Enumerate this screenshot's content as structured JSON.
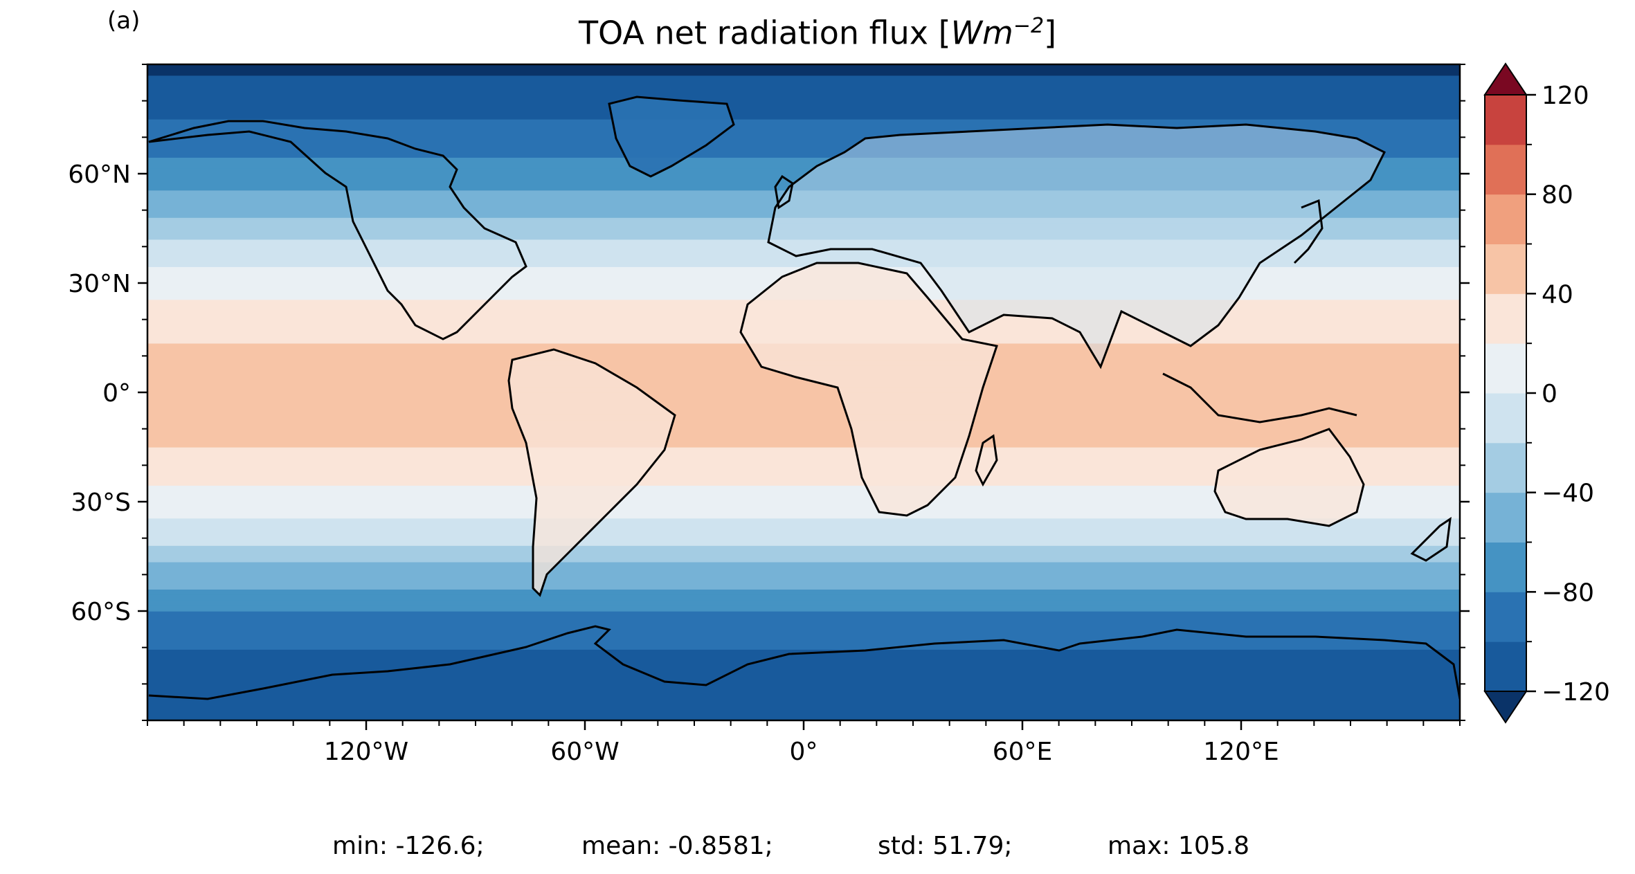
{
  "panel_label": "(a)",
  "title": {
    "text": "TOA net radiation flux [",
    "unit": "Wm",
    "exponent": "−2",
    "close": "]"
  },
  "map": {
    "projection": "PlateCarree",
    "lon_range": [
      -180,
      180
    ],
    "lat_range": [
      -90,
      90
    ],
    "x_ticks": [
      {
        "lon": -120,
        "label": "120°W"
      },
      {
        "lon": -60,
        "label": "60°W"
      },
      {
        "lon": 0,
        "label": "0°"
      },
      {
        "lon": 60,
        "label": "60°E"
      },
      {
        "lon": 120,
        "label": "120°E"
      }
    ],
    "y_ticks": [
      {
        "lat": 60,
        "label": "60°N"
      },
      {
        "lat": 30,
        "label": "30°N"
      },
      {
        "lat": 0,
        "label": "0°"
      },
      {
        "lat": -30,
        "label": "30°S"
      },
      {
        "lat": -60,
        "label": "60°S"
      }
    ],
    "colormap": "RdBu_r",
    "zonal_profile": [
      {
        "lat": -90,
        "value": -110
      },
      {
        "lat": -80,
        "value": -105
      },
      {
        "lat": -70,
        "value": -100
      },
      {
        "lat": -60,
        "value": -80
      },
      {
        "lat": -50,
        "value": -50
      },
      {
        "lat": -40,
        "value": -15
      },
      {
        "lat": -30,
        "value": 10
      },
      {
        "lat": -20,
        "value": 35
      },
      {
        "lat": -10,
        "value": 45
      },
      {
        "lat": 0,
        "value": 55
      },
      {
        "lat": 10,
        "value": 45
      },
      {
        "lat": 20,
        "value": 30
      },
      {
        "lat": 30,
        "value": 10
      },
      {
        "lat": 40,
        "value": -15
      },
      {
        "lat": 50,
        "value": -45
      },
      {
        "lat": 60,
        "value": -70
      },
      {
        "lat": 70,
        "value": -90
      },
      {
        "lat": 80,
        "value": -110
      },
      {
        "lat": 90,
        "value": -125
      }
    ]
  },
  "colorbar": {
    "min": -120,
    "max": 120,
    "step": 20,
    "extend": "both",
    "tick_labels": [
      {
        "value": 120,
        "label": "120"
      },
      {
        "value": 80,
        "label": "80"
      },
      {
        "value": 40,
        "label": "40"
      },
      {
        "value": 0,
        "label": "0"
      },
      {
        "value": -40,
        "label": "−40"
      },
      {
        "value": -80,
        "label": "−80"
      },
      {
        "value": -120,
        "label": "−120"
      }
    ],
    "colors": [
      "#185a9c",
      "#2a72b2",
      "#4593c3",
      "#76b2d6",
      "#a4cce3",
      "#cfe3ef",
      "#eaf0f4",
      "#fae5d9",
      "#f7c4a6",
      "#f0a07e",
      "#e07057",
      "#c8433e",
      "#a3172d"
    ],
    "under_color": "#0a3368",
    "over_color": "#7a0822"
  },
  "stats": {
    "min": "min: -126.6;",
    "mean": "mean: -0.8581;",
    "std": "std: 51.79;",
    "max": "max: 105.8"
  }
}
